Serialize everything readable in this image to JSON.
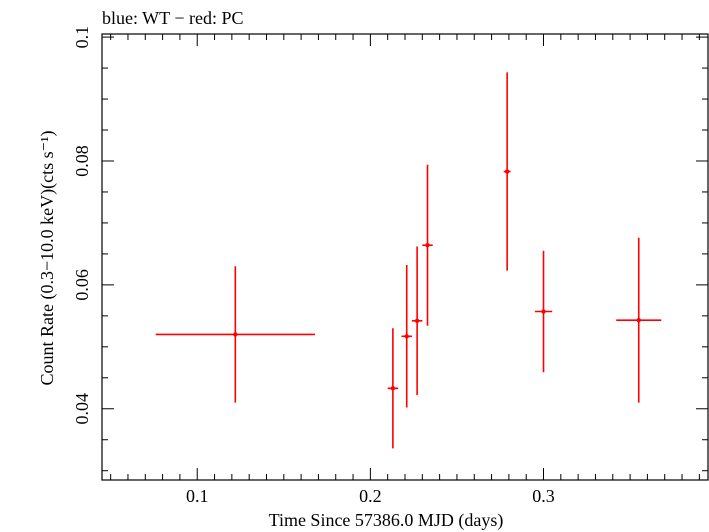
{
  "chart_data": {
    "type": "scatter",
    "title": "blue: WT − red: PC",
    "xlabel": "Time Since 57386.0 MJD (days)",
    "ylabel": "Count Rate (0.3−10.0 keV)(cts s⁻¹)",
    "xlim": [
      0.045,
      0.395
    ],
    "ylim": [
      0.0285,
      0.1005
    ],
    "xticks": [
      0.1,
      0.2,
      0.3
    ],
    "yticks": [
      0.04,
      0.06,
      0.08,
      0.1
    ],
    "xtick_labels": [
      "0.1",
      "0.2",
      "0.3"
    ],
    "ytick_labels": [
      "0.04",
      "0.06",
      "0.08",
      "0.1"
    ],
    "grid": false,
    "series": [
      {
        "color": "#ff0000",
        "points": [
          {
            "x": 0.122,
            "y": 0.052,
            "xerr": [
              0.046,
              0.046
            ],
            "yerr": [
              0.011,
              0.011
            ]
          },
          {
            "x": 0.213,
            "y": 0.0433,
            "xerr": [
              0.003,
              0.003
            ],
            "yerr": [
              0.0097,
              0.0097
            ]
          },
          {
            "x": 0.221,
            "y": 0.0517,
            "xerr": [
              0.003,
              0.003
            ],
            "yerr": [
              0.0115,
              0.0115
            ]
          },
          {
            "x": 0.227,
            "y": 0.0542,
            "xerr": [
              0.003,
              0.003
            ],
            "yerr": [
              0.012,
              0.012
            ]
          },
          {
            "x": 0.233,
            "y": 0.0664,
            "xerr": [
              0.003,
              0.003
            ],
            "yerr": [
              0.013,
              0.013
            ]
          },
          {
            "x": 0.279,
            "y": 0.0783,
            "xerr": [
              0.002,
              0.002
            ],
            "yerr": [
              0.016,
              0.016
            ]
          },
          {
            "x": 0.3,
            "y": 0.0557,
            "xerr": [
              0.005,
              0.005
            ],
            "yerr": [
              0.0098,
              0.0098
            ]
          },
          {
            "x": 0.355,
            "y": 0.0543,
            "xerr": [
              0.013,
              0.013
            ],
            "yerr": [
              0.0133,
              0.0133
            ]
          }
        ]
      }
    ]
  }
}
